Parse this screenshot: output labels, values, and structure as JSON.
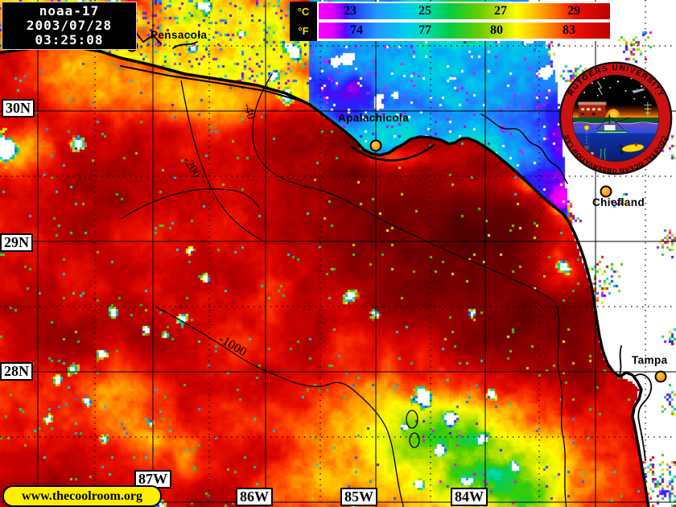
{
  "header": {
    "satellite": "noaa-17",
    "date": "2003/07/28",
    "time": "03:25:08"
  },
  "colorbar": {
    "celsius_label": "°C",
    "fahrenheit_label": "°F",
    "celsius_ticks": [
      "23",
      "25",
      "27",
      "29"
    ],
    "fahrenheit_ticks": [
      "74",
      "77",
      "80",
      "83"
    ],
    "gradient": [
      "#ff00ff",
      "#6600ff",
      "#2233ff",
      "#2299ff",
      "#00ccee",
      "#00ddbb",
      "#00cc44",
      "#66cc00",
      "#bbdd00",
      "#ffff00",
      "#ffaa00",
      "#ff5500",
      "#ee1100",
      "#bb0000"
    ],
    "range_celsius": [
      22,
      30
    ]
  },
  "map": {
    "colors": {
      "warmest_water": "#5c0000",
      "warm_water": "#cc0000",
      "cool_water": "#2266ff",
      "cloud": "#ffffff",
      "land": "#ffffff",
      "marker": "#ff7700",
      "banner_bg": "#ffee00"
    }
  },
  "cities": [
    {
      "name": "Pensacola"
    },
    {
      "name": "Apalachicola"
    },
    {
      "name": "Chiefland"
    },
    {
      "name": "Tampa"
    }
  ],
  "grid": {
    "lat": [
      {
        "label": "30N"
      },
      {
        "label": "29N"
      },
      {
        "label": "28N"
      }
    ],
    "lon": [
      {
        "label": "87W"
      },
      {
        "label": "86W"
      },
      {
        "label": "85W"
      },
      {
        "label": "84W"
      }
    ]
  },
  "contours": [
    {
      "label": "-40"
    },
    {
      "label": "-200"
    },
    {
      "label": "-1000"
    }
  ],
  "banner": {
    "text": "www.thecoolroom.org"
  },
  "logo": {
    "top_text": "RUTGERS UNIVERSITY",
    "bottom_text": "COASTAL OCEAN OBSERVATION LAB"
  }
}
